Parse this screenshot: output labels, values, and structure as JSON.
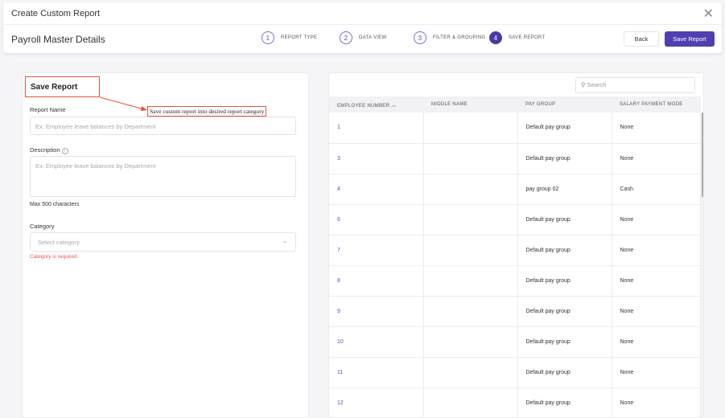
{
  "header": {
    "title": "Create Custom Report",
    "subtitle": "Payroll Master Details",
    "close_icon": "close-icon"
  },
  "steps": [
    {
      "n": "1",
      "label": "REPORT TYPE"
    },
    {
      "n": "2",
      "label": "DATA VIEW"
    },
    {
      "n": "3",
      "label": "FILTER & GROUPING"
    },
    {
      "n": "4",
      "label": "SAVE REPORT",
      "active": true
    }
  ],
  "buttons": {
    "back": "Back",
    "save": "Save Report"
  },
  "form": {
    "heading": "Save Report",
    "annotation": "Save custom report into desired report category",
    "report_name_label": "Report Name",
    "report_name_placeholder": "Ex: Employee leave balances by Department",
    "description_label": "Description",
    "description_placeholder": "Ex: Employee leave balances by Department",
    "max_chars": "Max 500 characters",
    "category_label": "Category",
    "category_placeholder": "Select category",
    "category_error": "Category is required."
  },
  "table": {
    "search_placeholder": "Search",
    "columns": [
      "EMPLOYEE NUMBER",
      "MIDDLE NAME",
      "PAY GROUP",
      "SALARY PAYMENT MODE"
    ],
    "rows": [
      [
        "1",
        "",
        "Default pay group",
        "None"
      ],
      [
        "3",
        "",
        "Default pay group",
        "None"
      ],
      [
        "4",
        "",
        "pay group 02",
        "Cash"
      ],
      [
        "6",
        "",
        "Default pay group",
        "None"
      ],
      [
        "7",
        "",
        "Default pay group",
        "None"
      ],
      [
        "8",
        "",
        "Default pay group",
        "None"
      ],
      [
        "9",
        "",
        "Default pay group",
        "None"
      ],
      [
        "10",
        "",
        "Default pay group",
        "None"
      ],
      [
        "11",
        "",
        "Default pay group",
        "None"
      ],
      [
        "12",
        "",
        "Default pay group",
        "None"
      ]
    ]
  },
  "colors": {
    "accent": "#4f3fb0",
    "annotation": "#e8533a",
    "error": "#ee5555"
  }
}
